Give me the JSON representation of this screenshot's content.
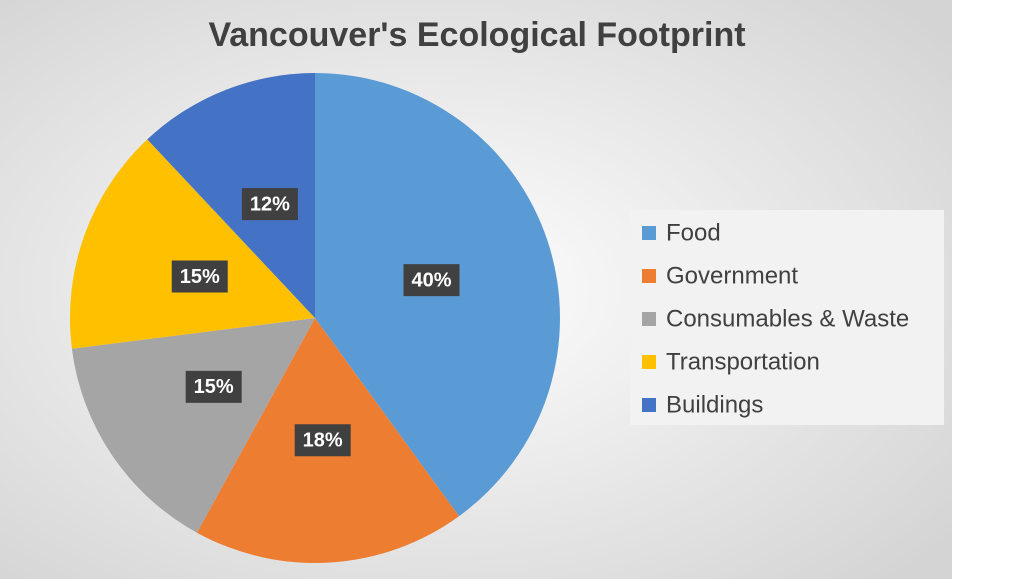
{
  "chart_data": {
    "type": "pie",
    "title": "Vancouver's Ecological Footprint",
    "categories": [
      "Food",
      "Government",
      "Consumables & Waste",
      "Transportation",
      "Buildings"
    ],
    "values": [
      40,
      18,
      15,
      15,
      12
    ],
    "value_labels": [
      "40%",
      "18%",
      "15%",
      "15%",
      "12%"
    ],
    "colors": [
      "#5b9bd5",
      "#ed7d31",
      "#a5a5a5",
      "#ffc000",
      "#4472c4"
    ],
    "legend": "right"
  }
}
